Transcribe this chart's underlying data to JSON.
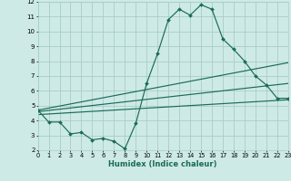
{
  "xlabel": "Humidex (Indice chaleur)",
  "xlim": [
    0,
    23
  ],
  "ylim": [
    2,
    12
  ],
  "yticks": [
    2,
    3,
    4,
    5,
    6,
    7,
    8,
    9,
    10,
    11,
    12
  ],
  "xticks": [
    0,
    1,
    2,
    3,
    4,
    5,
    6,
    7,
    8,
    9,
    10,
    11,
    12,
    13,
    14,
    15,
    16,
    17,
    18,
    19,
    20,
    21,
    22,
    23
  ],
  "bg_color": "#ceeae6",
  "grid_color": "#a8cdc8",
  "line_color": "#1a6b5a",
  "line1_x": [
    0,
    1,
    2,
    3,
    4,
    5,
    6,
    7,
    8,
    9,
    10,
    11,
    12,
    13,
    14,
    15,
    16,
    17,
    18,
    19,
    20,
    21,
    22,
    23
  ],
  "line1_y": [
    4.7,
    3.9,
    3.9,
    3.1,
    3.2,
    2.7,
    2.8,
    2.6,
    2.1,
    3.8,
    6.5,
    8.5,
    10.8,
    11.5,
    11.1,
    11.8,
    11.5,
    9.5,
    8.8,
    8.0,
    7.0,
    6.4,
    5.5,
    5.5
  ],
  "line2_x": [
    0,
    23
  ],
  "line2_y": [
    4.7,
    7.9
  ],
  "line3_x": [
    0,
    23
  ],
  "line3_y": [
    4.6,
    6.5
  ],
  "line4_x": [
    0,
    23
  ],
  "line4_y": [
    4.4,
    5.4
  ]
}
